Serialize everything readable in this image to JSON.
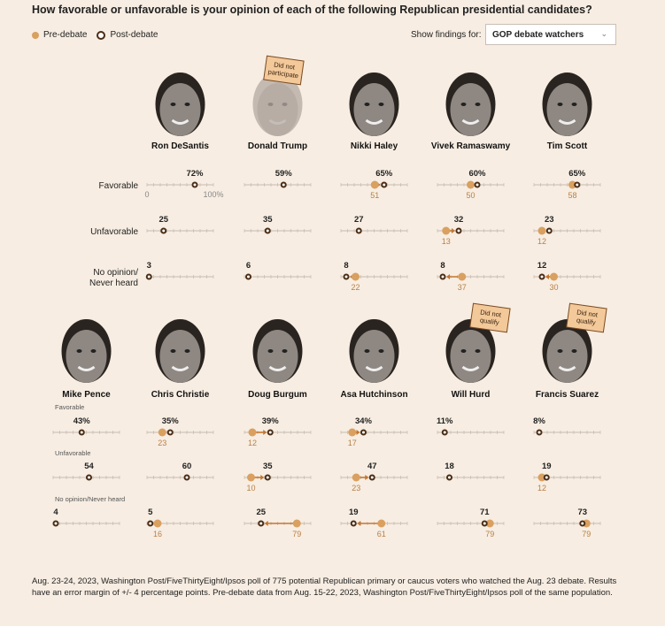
{
  "title": "How favorable or unfavorable is your opinion of each of the following Republican presidential candidates?",
  "legend": {
    "pre": "Pre-debate",
    "post": "Post-debate"
  },
  "filter": {
    "label": "Show findings for:",
    "selected": "GOP debate watchers"
  },
  "footnote": "Aug. 23-24, 2023, Washington Post/FiveThirtyEight/Ipsos poll of 775 potential Republican primary or caucus voters who watched the Aug. 23 debate. Results have an error margin of +/- 4 percentage points. Pre-debate data from Aug. 15-22, 2023, Washington Post/FiveThirtyEight/Ipsos poll of the same population.",
  "colors": {
    "pre": "#d9a060",
    "post": "#4a2d16",
    "axis": "#c7bbb0",
    "pre_text": "#b98047",
    "background": "#f7ede2",
    "tag": "#f3c99a"
  },
  "chart_data": {
    "type": "dot-arrow",
    "scale": [
      0,
      100
    ],
    "axis_labels": {
      "min": "0",
      "max": "100%"
    },
    "row1_labels": [
      "Favorable",
      "Unfavorable",
      "No opinion/\nNever heard"
    ],
    "row2_labels": [
      "Favorable",
      "Unfavorable",
      "No opinion/Never heard"
    ],
    "candidates": [
      {
        "name": "Ron DeSantis",
        "tag": "",
        "fav": {
          "post": 72,
          "pre": null,
          "label": "72%"
        },
        "unfav": {
          "post": 25,
          "pre": null
        },
        "noop": {
          "post": 3,
          "pre": null
        }
      },
      {
        "name": "Donald Trump",
        "tag": "Did not participate",
        "fav": {
          "post": 59,
          "pre": null,
          "label": "59%"
        },
        "unfav": {
          "post": 35,
          "pre": null
        },
        "noop": {
          "post": 6,
          "pre": null
        }
      },
      {
        "name": "Nikki Haley",
        "tag": "",
        "fav": {
          "post": 65,
          "pre": 51,
          "label": "65%"
        },
        "unfav": {
          "post": 27,
          "pre": null
        },
        "noop": {
          "post": 8,
          "pre": 22
        }
      },
      {
        "name": "Vivek Ramaswamy",
        "tag": "",
        "fav": {
          "post": 60,
          "pre": 50,
          "label": "60%"
        },
        "unfav": {
          "post": 32,
          "pre": 13
        },
        "noop": {
          "post": 8,
          "pre": 37
        }
      },
      {
        "name": "Tim Scott",
        "tag": "",
        "fav": {
          "post": 65,
          "pre": 58,
          "label": "65%"
        },
        "unfav": {
          "post": 23,
          "pre": 12
        },
        "noop": {
          "post": 12,
          "pre": 30
        }
      },
      {
        "name": "Mike Pence",
        "tag": "",
        "fav": {
          "post": 43,
          "pre": null,
          "label": "43%"
        },
        "unfav": {
          "post": 54,
          "pre": null
        },
        "noop": {
          "post": 4,
          "pre": null
        }
      },
      {
        "name": "Chris Christie",
        "tag": "",
        "fav": {
          "post": 35,
          "pre": 23,
          "label": "35%"
        },
        "unfav": {
          "post": 60,
          "pre": null
        },
        "noop": {
          "post": 5,
          "pre": 16
        }
      },
      {
        "name": "Doug Burgum",
        "tag": "",
        "fav": {
          "post": 39,
          "pre": 12,
          "label": "39%"
        },
        "unfav": {
          "post": 35,
          "pre": 10
        },
        "noop": {
          "post": 25,
          "pre": 79
        }
      },
      {
        "name": "Asa Hutchinson",
        "tag": "",
        "fav": {
          "post": 34,
          "pre": 17,
          "label": "34%"
        },
        "unfav": {
          "post": 47,
          "pre": 23
        },
        "noop": {
          "post": 19,
          "pre": 61
        }
      },
      {
        "name": "Will Hurd",
        "tag": "Did not qualify",
        "fav": {
          "post": 11,
          "pre": null,
          "label": "11%"
        },
        "unfav": {
          "post": 18,
          "pre": null
        },
        "noop": {
          "post": 71,
          "pre": 79
        }
      },
      {
        "name": "Francis Suarez",
        "tag": "Did not qualify",
        "fav": {
          "post": 8,
          "pre": null,
          "label": "8%"
        },
        "unfav": {
          "post": 19,
          "pre": 12
        },
        "noop": {
          "post": 73,
          "pre": 79
        }
      }
    ]
  }
}
